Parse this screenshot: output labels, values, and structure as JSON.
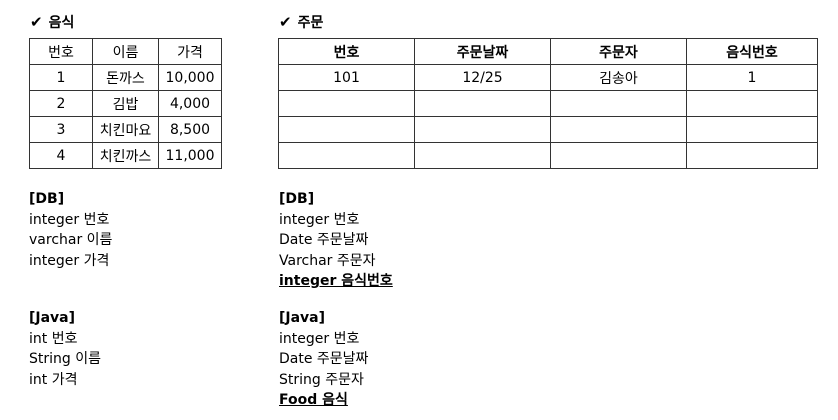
{
  "food": {
    "title": "음식",
    "check_icon": "✔",
    "headers": [
      "번호",
      "이름",
      "가격"
    ],
    "rows": [
      [
        "1",
        "돈까스",
        "10,000"
      ],
      [
        "2",
        "김밥",
        "4,000"
      ],
      [
        "3",
        "치킨마요",
        "8,500"
      ],
      [
        "4",
        "치킨까스",
        "11,000"
      ]
    ],
    "db": {
      "heading": "[DB]",
      "lines": [
        "integer 번호",
        "varchar 이름",
        "integer 가격"
      ]
    },
    "java": {
      "heading": "[Java]",
      "lines": [
        "int 번호",
        "String 이름",
        "int 가격"
      ]
    }
  },
  "order": {
    "title": "주문",
    "check_icon": "✔",
    "headers": [
      "번호",
      "주문날짜",
      "주문자",
      "음식번호"
    ],
    "rows": [
      [
        "101",
        "12/25",
        "김송아",
        "1"
      ],
      [
        "",
        "",
        "",
        ""
      ],
      [
        "",
        "",
        "",
        ""
      ],
      [
        "",
        "",
        "",
        ""
      ]
    ],
    "db": {
      "heading": "[DB]",
      "lines": [
        "integer 번호",
        "Date 주문날짜",
        "Varchar 주문자"
      ],
      "fk_line": "integer 음식번호"
    },
    "java": {
      "heading": "[Java]",
      "lines": [
        "integer 번호",
        "Date 주문날짜",
        "String 주문자"
      ],
      "fk_line": "Food 음식"
    }
  }
}
